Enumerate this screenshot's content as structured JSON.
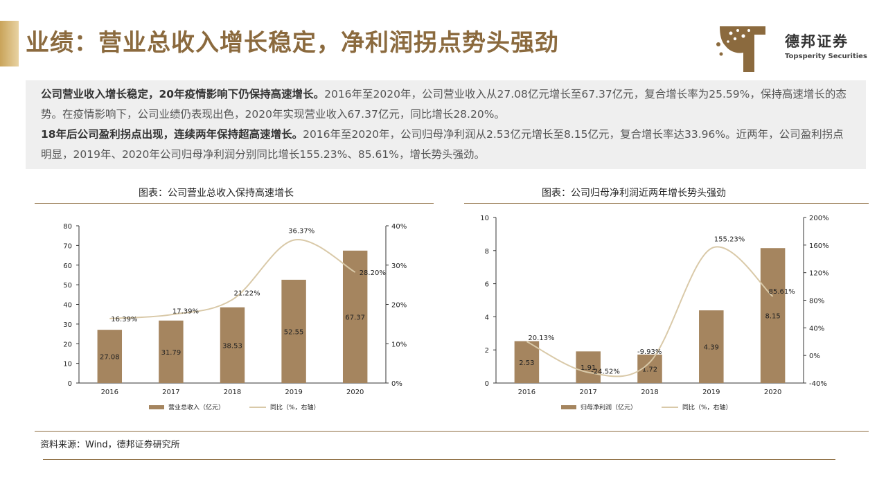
{
  "header": {
    "title": "业绩：营业总收入增长稳定，净利润拐点势头强劲",
    "brand_cn": "德邦证券",
    "brand_en": "Topsperity Securities",
    "accent_color": "#8b6a3e"
  },
  "summary": {
    "p1_bold": "公司营业收入增长稳定，20年疫情影响下仍保持高速增长。",
    "p1_text": "2016年至2020年，公司营业收入从27.08亿元增长至67.37亿元，复合增长率为25.59%，保持高速增长的态势。在疫情影响下，公司业绩仍表现出色，2020年实现营业收入67.37亿元，同比增长28.20%。",
    "p2_bold": "18年后公司盈利拐点出现，连续两年保持超高速增长。",
    "p2_text": "2016年至2020年，公司归母净利润从2.53亿元增长至8.15亿元，复合增长率达33.96%。近两年，公司盈利拐点明显，2019年、2020年公司归母净利润分别同比增长155.23%、85.61%，增长势头强劲。"
  },
  "chart_data": [
    {
      "type": "bar",
      "title": "图表：公司营业总收入保持高速增长",
      "categories": [
        "2016",
        "2017",
        "2018",
        "2019",
        "2020"
      ],
      "series": [
        {
          "name": "营业总收入（亿元）",
          "type": "bar",
          "axis": "left",
          "values": [
            27.08,
            31.79,
            38.53,
            52.55,
            67.37
          ],
          "labels": [
            "27.08",
            "31.79",
            "38.53",
            "52.55",
            "67.37"
          ]
        },
        {
          "name": "同比（%，右轴）",
          "type": "line",
          "axis": "right",
          "values": [
            16.39,
            17.39,
            21.22,
            36.37,
            28.2
          ],
          "labels": [
            "16.39%",
            "17.39%",
            "21.22%",
            "36.37%",
            "28.20%"
          ]
        }
      ],
      "ylim": [
        0,
        80
      ],
      "y_ticks": [
        "0",
        "10",
        "20",
        "30",
        "40",
        "50",
        "60",
        "70",
        "80"
      ],
      "y2lim": [
        0,
        40
      ],
      "y2_ticks": [
        "0%",
        "10%",
        "20%",
        "30%",
        "40%"
      ],
      "legend_position": "bottom",
      "bar_color": "#a5855f",
      "line_color": "#d9c9a8"
    },
    {
      "type": "bar",
      "title": "图表：公司归母净利润近两年增长势头强劲",
      "categories": [
        "2016",
        "2017",
        "2018",
        "2019",
        "2020"
      ],
      "series": [
        {
          "name": "归母净利润（亿元）",
          "type": "bar",
          "axis": "left",
          "values": [
            2.53,
            1.91,
            1.72,
            4.39,
            8.15
          ],
          "labels": [
            "2.53",
            "1.91",
            "1.72",
            "4.39",
            "8.15"
          ]
        },
        {
          "name": "同比（%，右轴）",
          "type": "line",
          "axis": "right",
          "values": [
            20.13,
            -24.52,
            -9.93,
            155.23,
            85.61
          ],
          "labels": [
            "20.13%",
            "-24.52%",
            "-9.93%",
            "155.23%",
            "85.61%"
          ]
        }
      ],
      "ylim": [
        0,
        10
      ],
      "y_ticks": [
        "0",
        "2",
        "4",
        "6",
        "8",
        "10"
      ],
      "y2lim": [
        -40,
        200
      ],
      "y2_ticks": [
        "-40%",
        "0%",
        "40%",
        "80%",
        "120%",
        "160%",
        "200%"
      ],
      "legend_position": "bottom",
      "bar_color": "#a5855f",
      "line_color": "#d9c9a8"
    }
  ],
  "footer": {
    "source": "资料来源：Wind，德邦证券研究所"
  }
}
